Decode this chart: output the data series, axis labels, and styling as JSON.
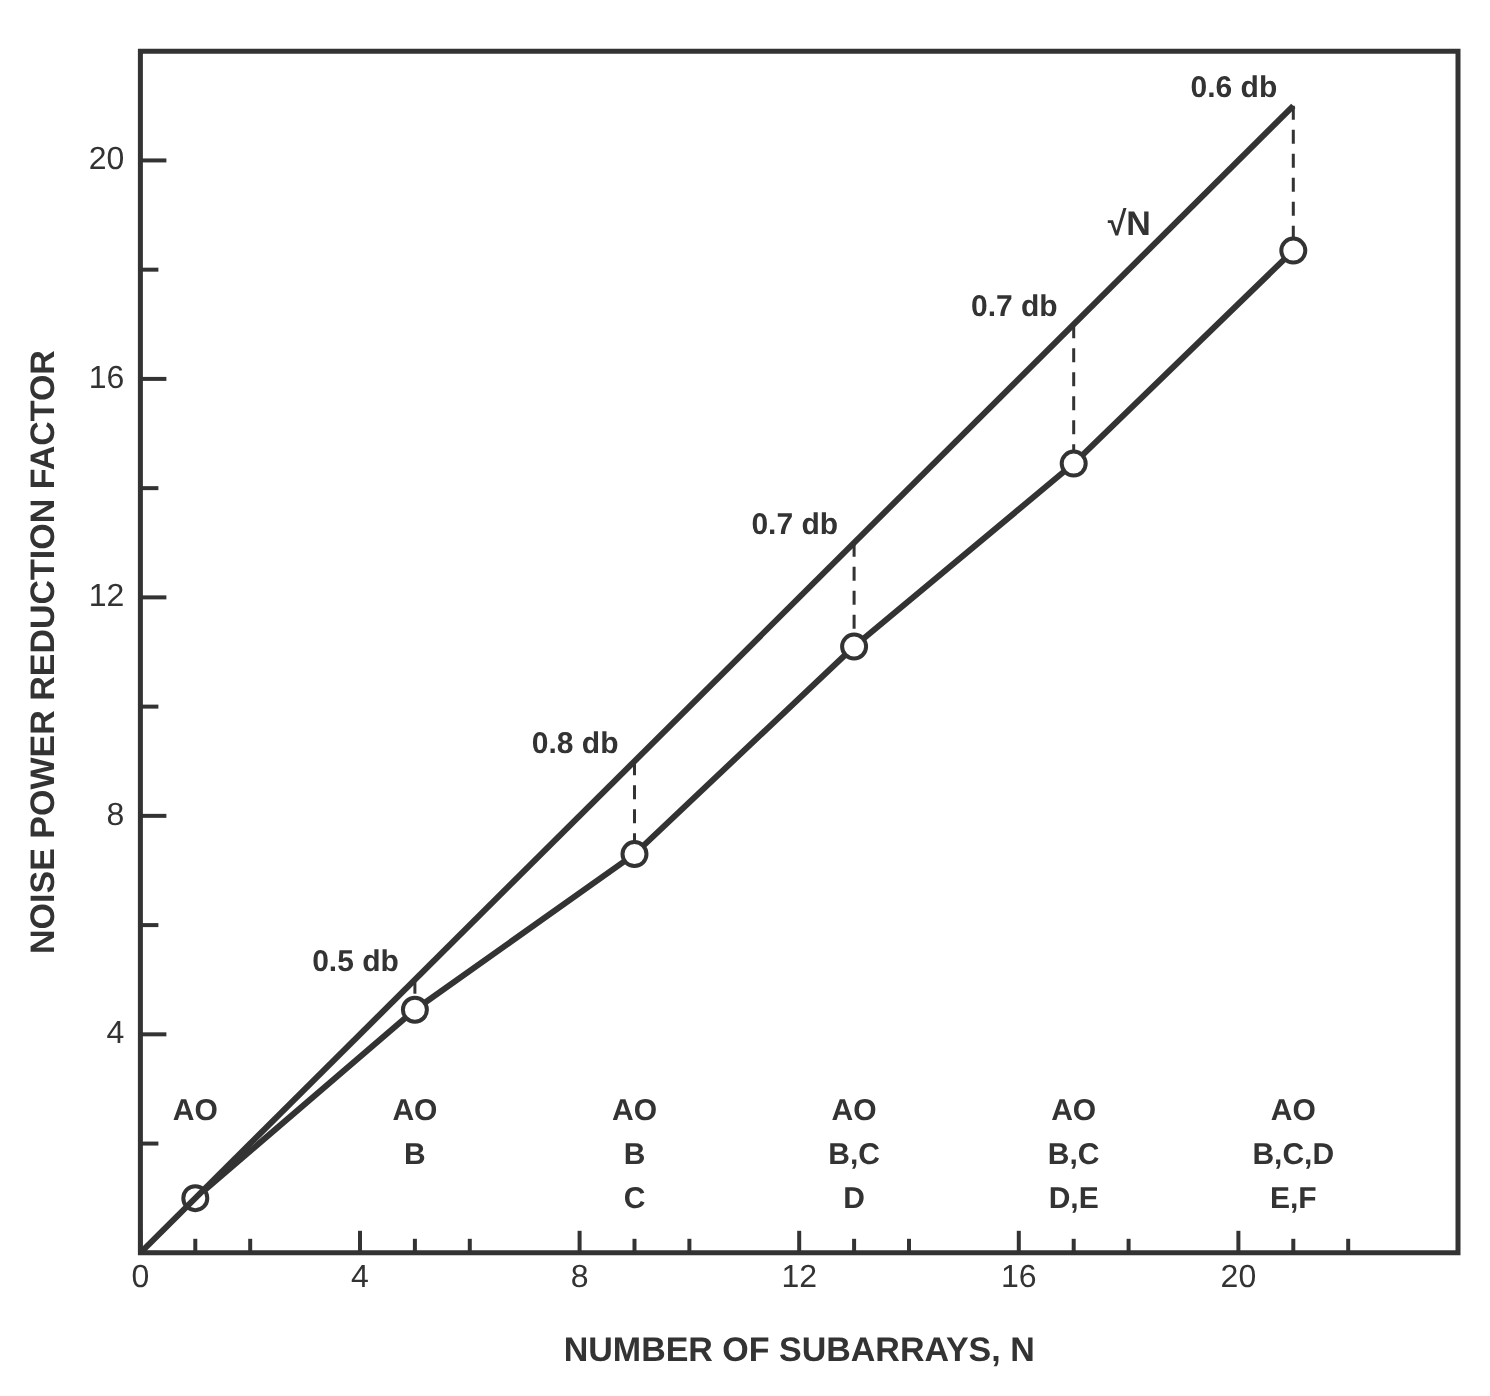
{
  "chart_data": {
    "type": "line",
    "xlabel": "NUMBER OF SUBARRAYS, N",
    "ylabel": "NOISE POWER REDUCTION FACTOR",
    "xlim": [
      0,
      24
    ],
    "ylim": [
      0,
      22
    ],
    "xticks": [
      0,
      {
        "value": 1,
        "label": null
      },
      {
        "value": 2,
        "label": null
      },
      4,
      {
        "value": 5,
        "label": null
      },
      {
        "value": 6,
        "label": null
      },
      8,
      {
        "value": 9,
        "label": null
      },
      {
        "value": 10,
        "label": null
      },
      12,
      {
        "value": 13,
        "label": null
      },
      {
        "value": 14,
        "label": null
      },
      16,
      {
        "value": 17,
        "label": null
      },
      {
        "value": 18,
        "label": null
      },
      20,
      {
        "value": 21,
        "label": null
      },
      {
        "value": 22,
        "label": null
      }
    ],
    "yticks": [
      {
        "value": 0,
        "label": null
      },
      {
        "value": 2,
        "label": null
      },
      4,
      {
        "value": 6,
        "label": null
      },
      8,
      {
        "value": 10,
        "label": null
      },
      12,
      {
        "value": 14,
        "label": null
      },
      16,
      {
        "value": 18,
        "label": null
      },
      20
    ],
    "grid": false,
    "legend": false,
    "series": [
      {
        "name": "√N",
        "color": "#333333",
        "x": [
          0,
          21
        ],
        "values": [
          0,
          21
        ],
        "marker": "none"
      },
      {
        "color": "#333333",
        "x": [
          1,
          5,
          9,
          13,
          17,
          21
        ],
        "values": [
          1.0,
          4.45,
          7.3,
          11.1,
          14.45,
          18.35
        ],
        "marker": "circle"
      }
    ],
    "annotations": [
      {
        "text": "0.5 db",
        "x": 5,
        "y": 5
      },
      {
        "text": "0.8 db",
        "x": 9,
        "y": 9
      },
      {
        "text": "0.7 db",
        "x": 13,
        "y": 13
      },
      {
        "text": "0.7 db",
        "x": 17,
        "y": 17
      },
      {
        "text": "0.6 db",
        "x": 21,
        "y": 21
      },
      "AO",
      "AO\nB",
      "AO\nB\nC",
      "AO\nB,C\nD",
      "AO\nB,C\nD,E",
      "AO\nB,C,D\nE,F"
    ]
  }
}
